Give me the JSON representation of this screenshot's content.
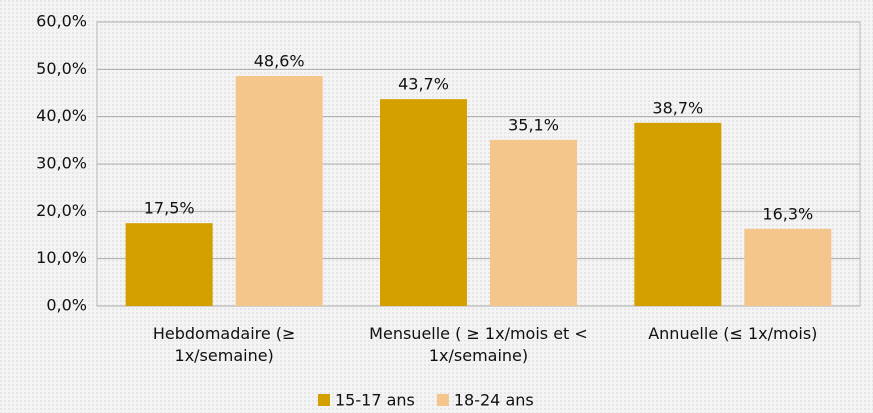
{
  "chart_data": {
    "type": "bar",
    "categories": [
      "Hebdomadaire (≥ 1x/semaine)",
      "Mensuelle ( ≥ 1x/mois et < 1x/semaine)",
      "Annuelle (≤ 1x/mois)"
    ],
    "series": [
      {
        "name": "15-17 ans",
        "color": "#d4a000",
        "values": [
          17.5,
          43.7,
          38.7
        ],
        "value_labels": [
          "17,5%",
          "43,7%",
          "38,7%"
        ]
      },
      {
        "name": "18-24 ans",
        "color": "#f5c68c",
        "values": [
          48.6,
          35.1,
          16.3
        ],
        "value_labels": [
          "48,6%",
          "35,1%",
          "16,3%"
        ]
      }
    ],
    "ylim": [
      0,
      60
    ],
    "yticks": [
      {
        "value": 0,
        "label": "0,0%"
      },
      {
        "value": 10,
        "label": "10,0%"
      },
      {
        "value": 20,
        "label": "20,0%"
      },
      {
        "value": 30,
        "label": "30,0%"
      },
      {
        "value": 40,
        "label": "40,0%"
      },
      {
        "value": 50,
        "label": "50,0%"
      },
      {
        "value": 60,
        "label": "60,0%"
      }
    ],
    "grid": true,
    "legend": "bottom"
  }
}
